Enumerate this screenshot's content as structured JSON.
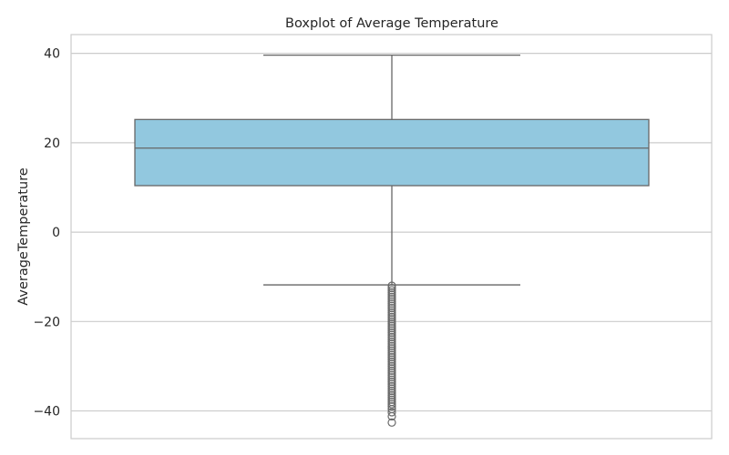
{
  "chart_data": {
    "type": "boxplot",
    "title": "Boxplot of Average Temperature",
    "xlabel": "",
    "ylabel": "AverageTemperature",
    "ylim": [
      -46.2,
      44.2
    ],
    "yticks": [
      -40,
      -20,
      0,
      20,
      40
    ],
    "ytick_labels": [
      "−40",
      "−20",
      "0",
      "20",
      "40"
    ],
    "grid": "horizontal",
    "box": {
      "whisker_low": -11.8,
      "q1": 10.4,
      "median": 18.8,
      "q3": 25.2,
      "whisker_high": 39.6
    },
    "outliers": [
      -12.0,
      -12.5,
      -13.0,
      -13.5,
      -14.0,
      -14.5,
      -15.0,
      -15.5,
      -16.0,
      -16.5,
      -17.0,
      -17.5,
      -18.0,
      -18.5,
      -19.0,
      -19.5,
      -20.0,
      -20.5,
      -21.0,
      -21.5,
      -22.0,
      -22.5,
      -23.0,
      -23.5,
      -24.0,
      -24.5,
      -25.0,
      -25.5,
      -26.0,
      -26.5,
      -27.0,
      -27.5,
      -28.0,
      -28.5,
      -29.0,
      -29.5,
      -30.0,
      -30.5,
      -31.0,
      -31.5,
      -32.0,
      -32.5,
      -33.0,
      -33.5,
      -34.0,
      -34.5,
      -35.0,
      -35.5,
      -36.0,
      -36.5,
      -37.0,
      -37.5,
      -38.0,
      -38.5,
      -39.0,
      -39.6,
      -40.3,
      -41.2,
      -42.6
    ],
    "colors": {
      "box_fill": "#92c8df",
      "box_edge": "#666666",
      "grid": "#cccccc",
      "frame": "#cccccc",
      "outlier": "#696969"
    }
  }
}
